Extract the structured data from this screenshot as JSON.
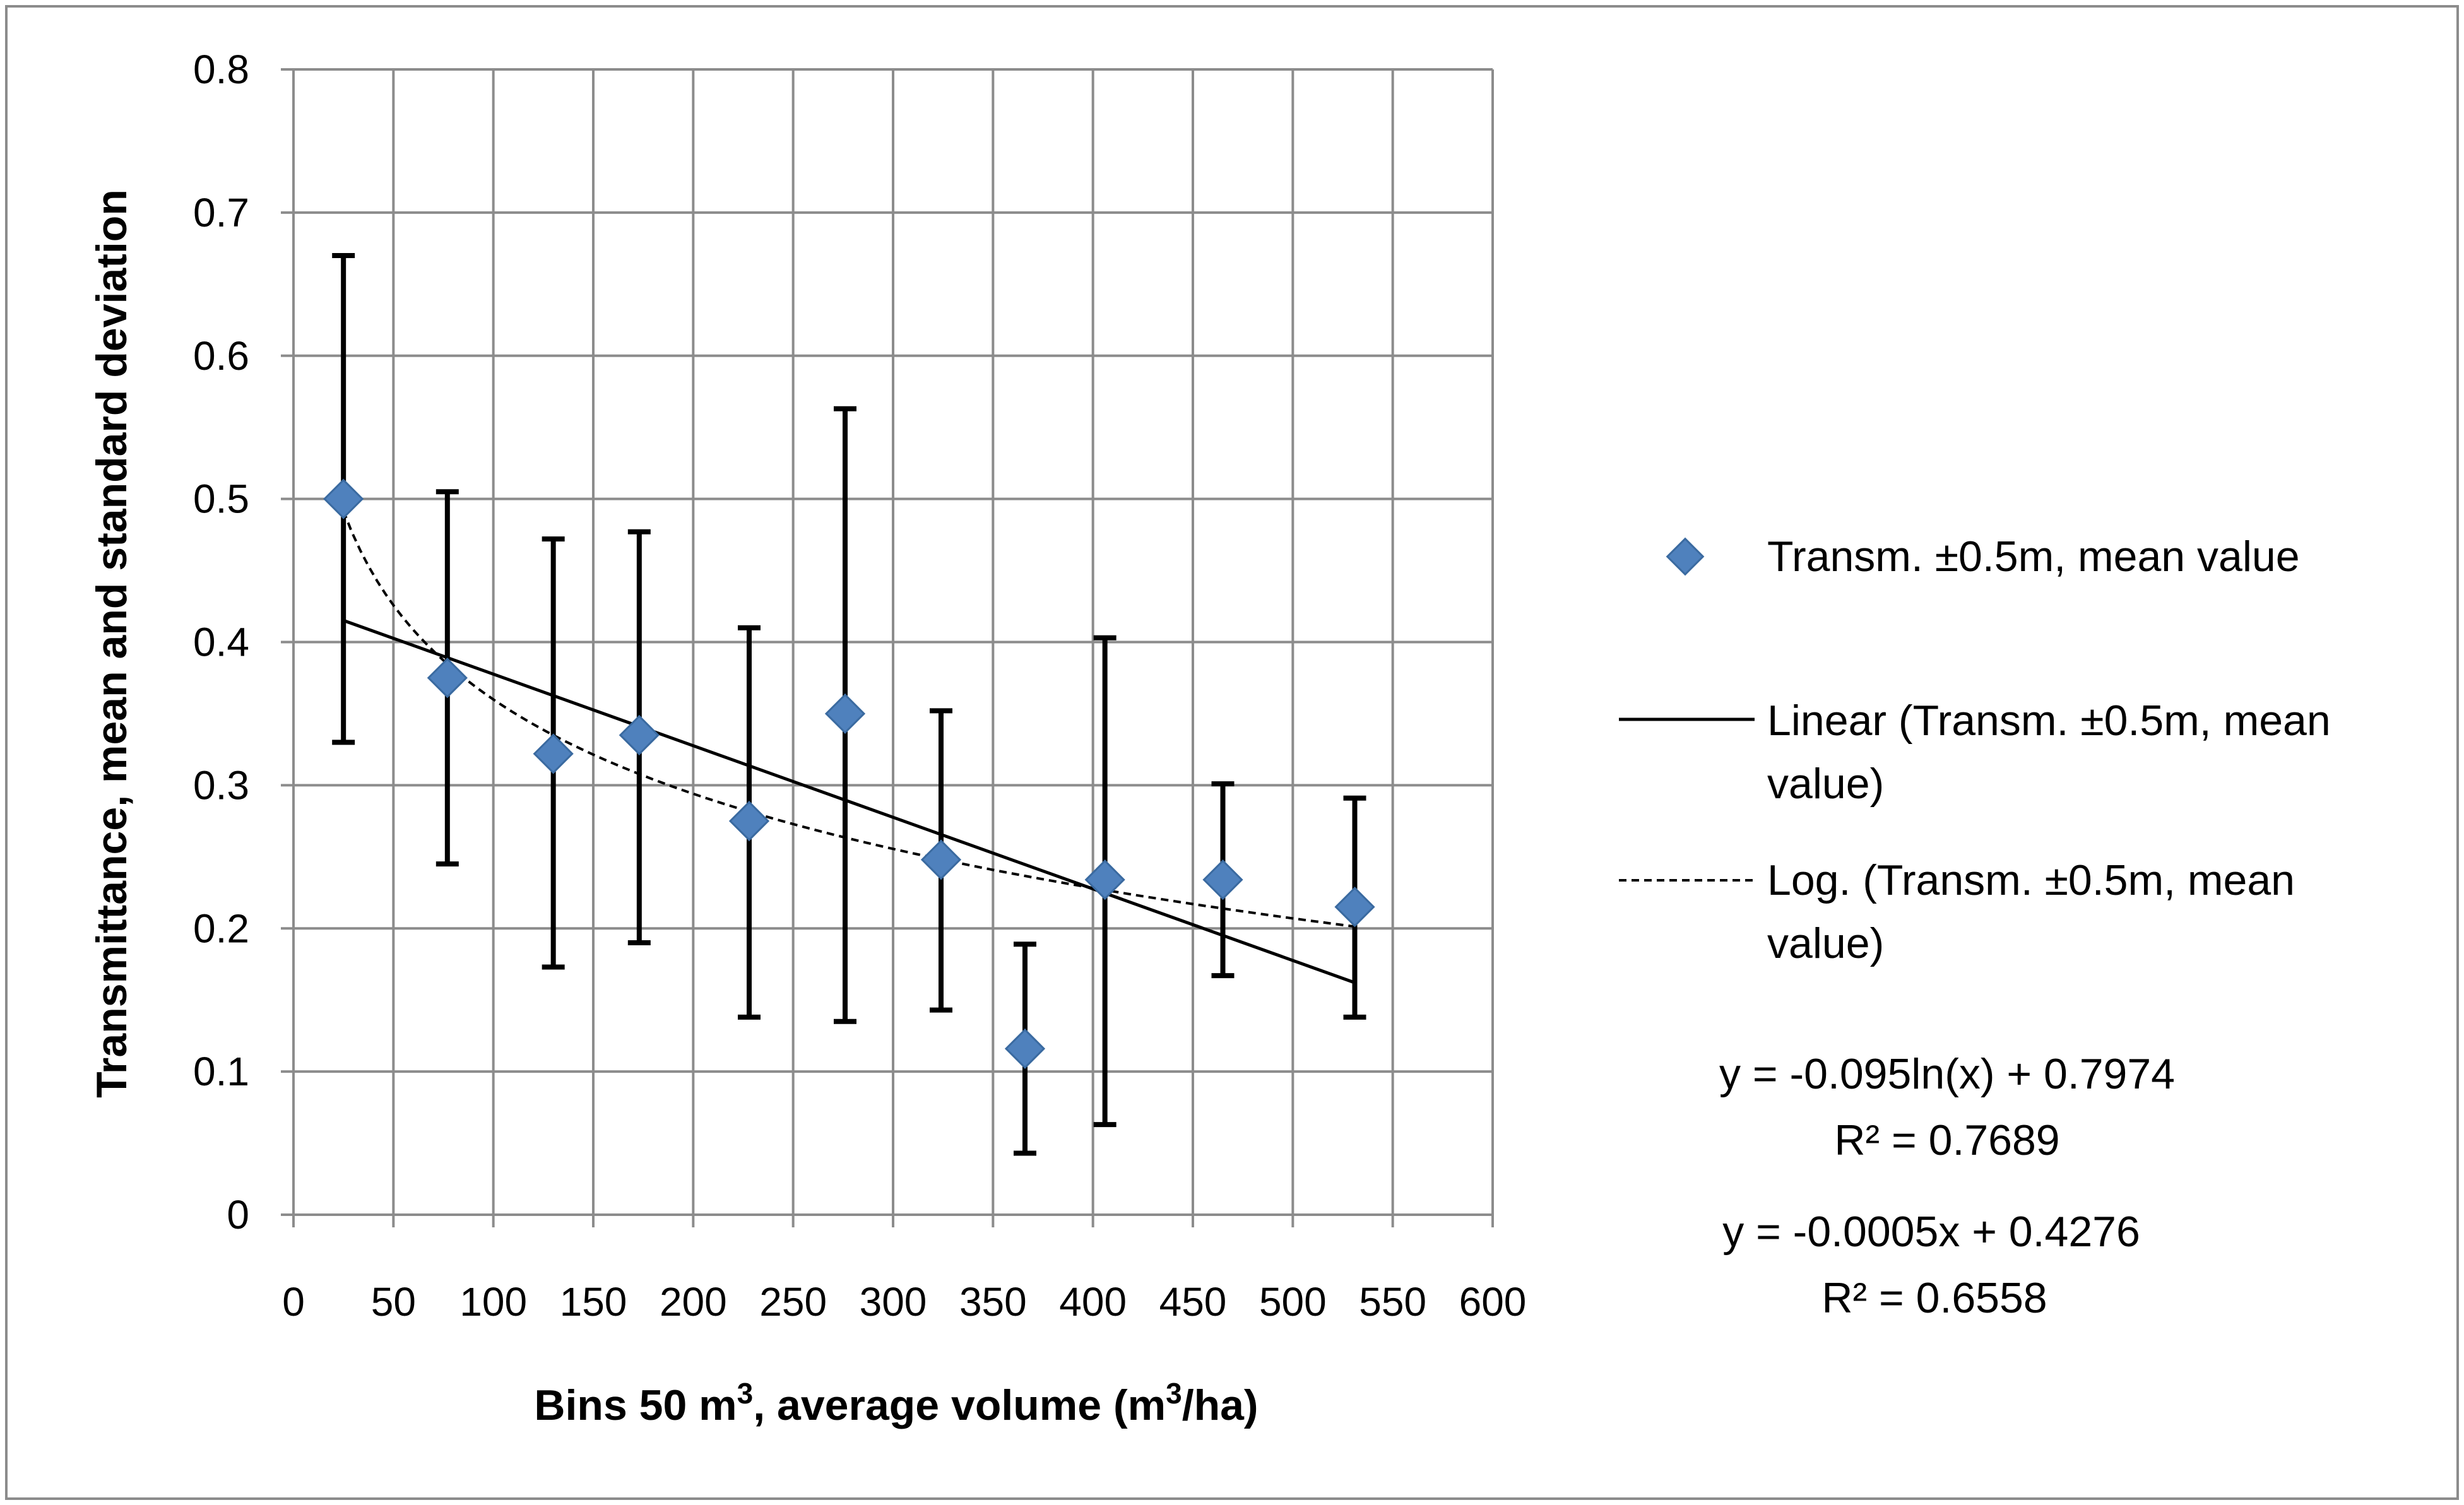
{
  "chart_data": {
    "type": "scatter",
    "title": "",
    "xlabel_main": "Bins 50 m",
    "xlabel_sup": "3",
    "xlabel_mid": ", average volume (m",
    "xlabel_sup2": "3",
    "xlabel_end": "/ha)",
    "ylabel": "Transmittance, mean and standard deviation",
    "xlim": [
      0,
      600
    ],
    "ylim": [
      0,
      0.8
    ],
    "x_ticks": [
      0,
      50,
      100,
      150,
      200,
      250,
      300,
      350,
      400,
      450,
      500,
      550,
      600
    ],
    "y_ticks": [
      0,
      0.1,
      0.2,
      0.3,
      0.4,
      0.5,
      0.6,
      0.7,
      0.8
    ],
    "x_tick_labels": [
      "0",
      "50",
      "100",
      "150",
      "200",
      "250",
      "300",
      "350",
      "400",
      "450",
      "500",
      "550",
      "600"
    ],
    "y_tick_labels": [
      "0",
      "0.1",
      "0.2",
      "0.3",
      "0.4",
      "0.5",
      "0.6",
      "0.7",
      "0.8"
    ],
    "grid": true,
    "legend_position": "right",
    "series": [
      {
        "name": "Transm.  ±0.5m, mean value",
        "marker": "diamond",
        "color": "#4f81bd",
        "points": [
          {
            "x": 25,
            "y": 0.5,
            "err_low": 0.33,
            "err_high": 0.67
          },
          {
            "x": 77,
            "y": 0.375,
            "err_low": 0.245,
            "err_high": 0.505
          },
          {
            "x": 130,
            "y": 0.322,
            "err_low": 0.173,
            "err_high": 0.472
          },
          {
            "x": 173,
            "y": 0.335,
            "err_low": 0.19,
            "err_high": 0.477
          },
          {
            "x": 228,
            "y": 0.275,
            "err_low": 0.138,
            "err_high": 0.41
          },
          {
            "x": 276,
            "y": 0.35,
            "err_low": 0.135,
            "err_high": 0.563
          },
          {
            "x": 324,
            "y": 0.248,
            "err_low": 0.143,
            "err_high": 0.352
          },
          {
            "x": 366,
            "y": 0.116,
            "err_low": 0.043,
            "err_high": 0.189
          },
          {
            "x": 406,
            "y": 0.234,
            "err_low": 0.063,
            "err_high": 0.403
          },
          {
            "x": 465,
            "y": 0.234,
            "err_low": 0.167,
            "err_high": 0.301
          },
          {
            "x": 531,
            "y": 0.215,
            "err_low": 0.138,
            "err_high": 0.291
          }
        ]
      }
    ],
    "trendlines": [
      {
        "name": "Linear (Transm.  ±0.5m, mean value)",
        "name_line1": "Linear (Transm.  ±0.5m, mean",
        "name_line2": "value)",
        "kind": "linear",
        "slope": -0.0005,
        "intercept": 0.4276,
        "equation": "y = -0.0005x + 0.4276",
        "r2": "R² = 0.6558",
        "style": "solid"
      },
      {
        "name": "Log. (Transm.  ±0.5m, mean value)",
        "name_line1": "Log. (Transm.  ±0.5m, mean",
        "name_line2": "value)",
        "kind": "log",
        "a": -0.095,
        "b": 0.7974,
        "equation": "y = -0.095ln(x) + 0.7974",
        "r2": "R² = 0.7689",
        "style": "dashed"
      }
    ],
    "x_range_trend": [
      25,
      531
    ]
  }
}
